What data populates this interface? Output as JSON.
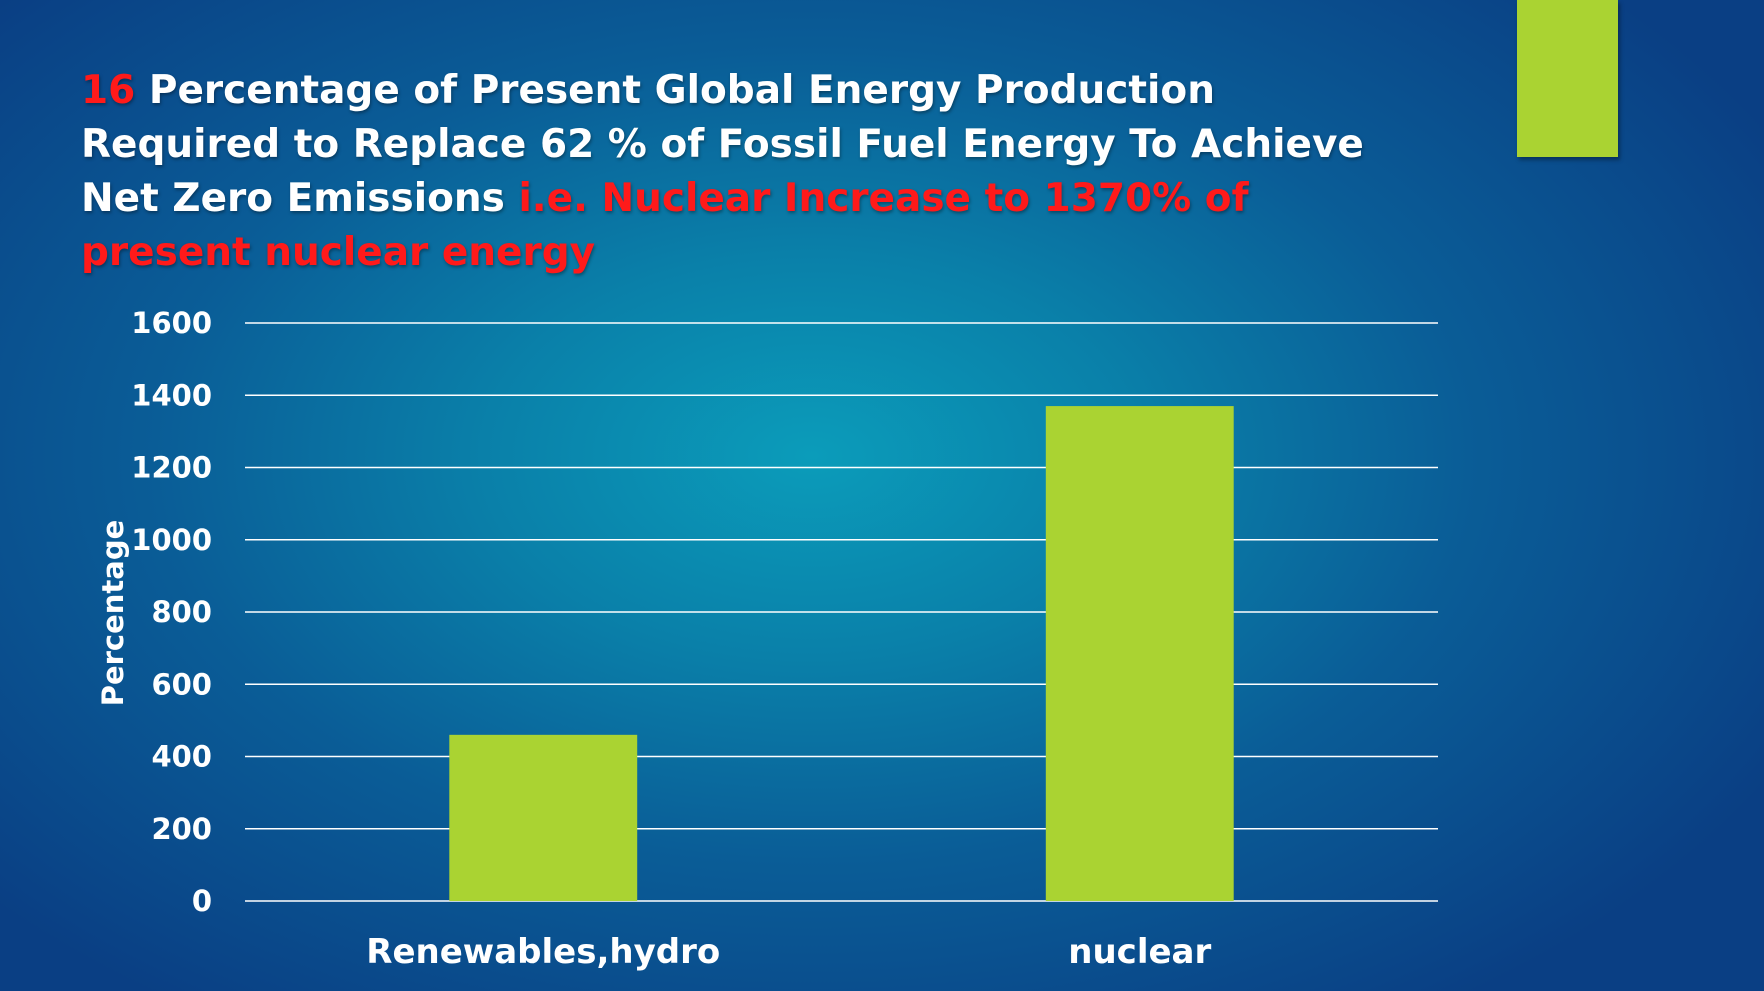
{
  "slide": {
    "number": "16",
    "title_white_1": " Percentage of Present Global Energy Production Required to Replace 62 % of Fossil Fuel Energy To Achieve Net Zero Emissions ",
    "title_red": " i.e. Nuclear Increase to 1370% of present nuclear energy"
  },
  "colors": {
    "bar": "#aad332",
    "accent": "#aad332",
    "highlight_text": "#ff1a1a",
    "gridline": "#ffffff"
  },
  "chart_data": {
    "type": "bar",
    "categories": [
      "Renewables,hydro",
      "nuclear"
    ],
    "values": [
      460,
      1370
    ],
    "ylabel": "Percentage",
    "xlabel": "",
    "ylim": [
      0,
      1600
    ],
    "yticks": [
      0,
      200,
      400,
      600,
      800,
      1000,
      1200,
      1400,
      1600
    ],
    "grid": true,
    "legend": "none"
  }
}
